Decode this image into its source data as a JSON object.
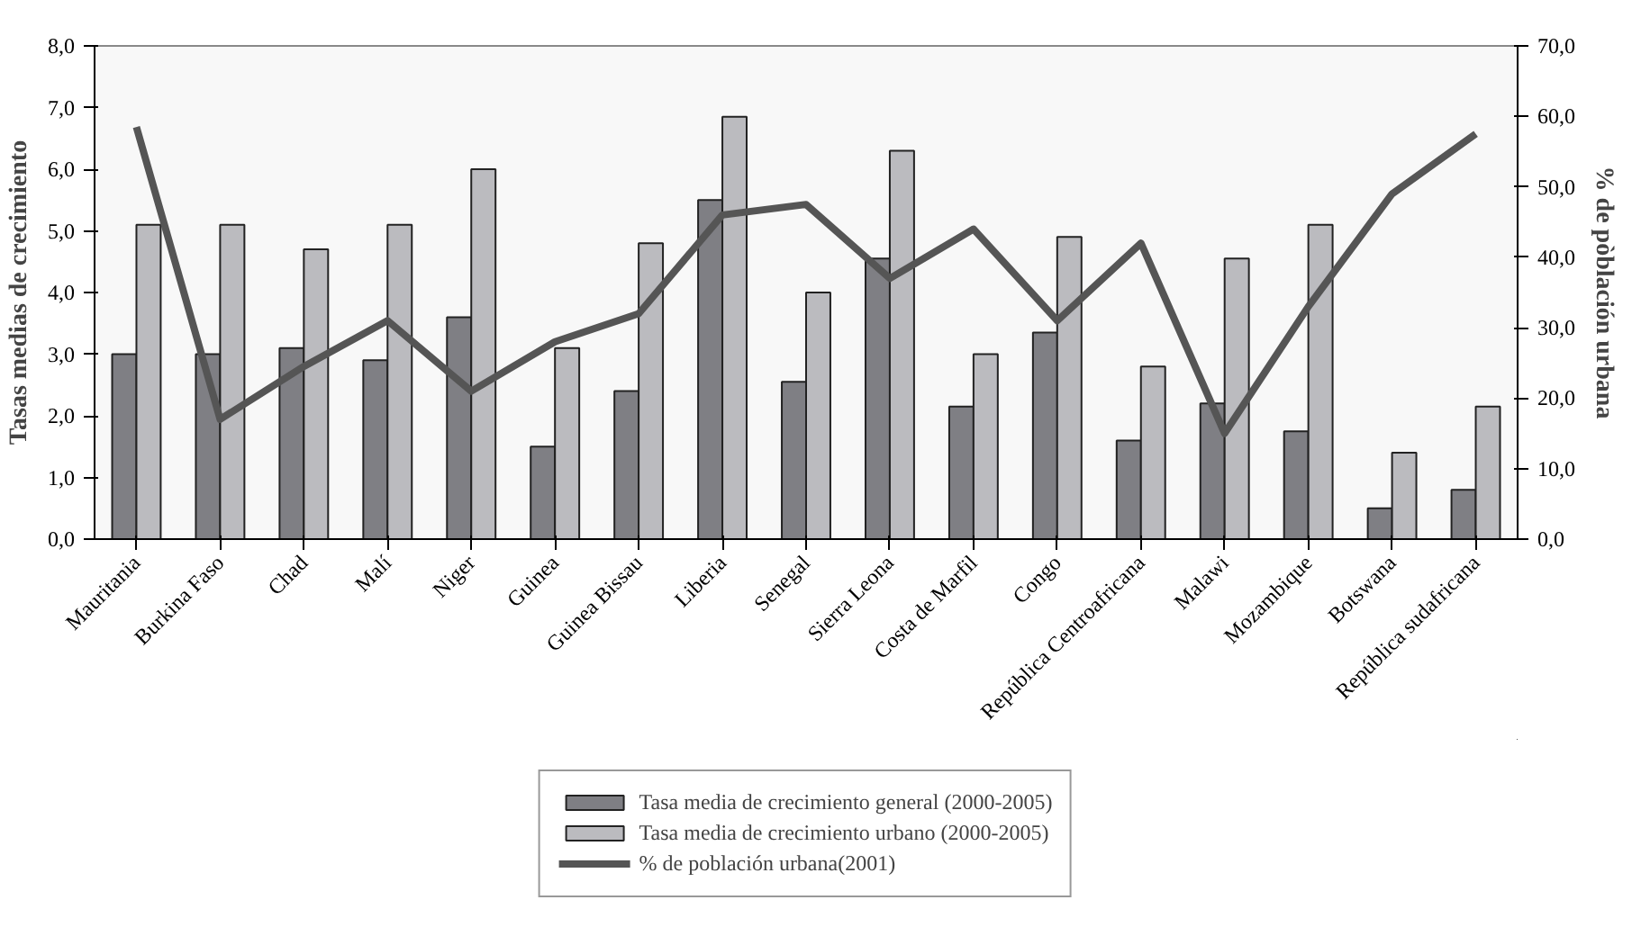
{
  "chart_data": {
    "type": "bar",
    "categories": [
      "Mauritania",
      "Burkina Faso",
      "Chad",
      "Malí",
      "Niger",
      "Guinea",
      "Guinea Bissau",
      "Liberia",
      "Senegal",
      "Sierra Leona",
      "Costa de Marfil",
      "Congo",
      "República Centroafricana",
      "Malawi",
      "Mozambique",
      "Botswana",
      "República sudafricana"
    ],
    "ylabel": "Tasas medias de crecimiento",
    "y2label": "% de pòblación urbana",
    "series": [
      {
        "name": "Tasa media de crecimiento general (2000-2005)",
        "color": "#7f7f84",
        "values": [
          3.0,
          3.0,
          3.1,
          2.9,
          3.6,
          1.5,
          2.4,
          5.5,
          2.55,
          4.55,
          2.15,
          3.35,
          1.6,
          2.2,
          1.75,
          0.5,
          0.8
        ]
      },
      {
        "name": "Tasa media de crecimiento urbano (2000-2005)",
        "color": "#bbbbbf",
        "values": [
          5.1,
          5.1,
          4.7,
          5.1,
          6.0,
          3.1,
          4.8,
          6.85,
          4.0,
          6.3,
          3.0,
          4.9,
          2.8,
          4.55,
          5.1,
          1.4,
          2.15
        ]
      },
      {
        "name": "% de población urbana(2001)",
        "type": "line",
        "axis": "y2",
        "color": "#555555",
        "values": [
          58.5,
          17,
          24.5,
          31,
          21,
          28,
          32,
          46,
          47.5,
          37,
          44,
          31,
          42,
          15,
          33,
          49,
          57.5
        ]
      }
    ],
    "ylim": [
      0,
      8
    ],
    "yticks": [
      {
        "value": 0,
        "label": "0,0"
      },
      {
        "value": 1,
        "label": "1,0"
      },
      {
        "value": 2,
        "label": "2,0"
      },
      {
        "value": 3,
        "label": "3,0"
      },
      {
        "value": 4,
        "label": "4,0"
      },
      {
        "value": 5,
        "label": "5,0"
      },
      {
        "value": 6,
        "label": "6,0"
      },
      {
        "value": 7,
        "label": "7,0"
      },
      {
        "value": 8,
        "label": "8,0"
      }
    ],
    "y2lim": [
      0,
      70
    ],
    "y2ticks": [
      {
        "value": 0,
        "label": "0,0"
      },
      {
        "value": 10,
        "label": "10,0"
      },
      {
        "value": 20,
        "label": "20,0"
      },
      {
        "value": 30,
        "label": "30,0"
      },
      {
        "value": 40,
        "label": "40,0"
      },
      {
        "value": 50,
        "label": "50,0"
      },
      {
        "value": 60,
        "label": "60,0"
      },
      {
        "value": 70,
        "label": "70,0"
      }
    ],
    "legend": "bottom",
    "grid": false
  }
}
